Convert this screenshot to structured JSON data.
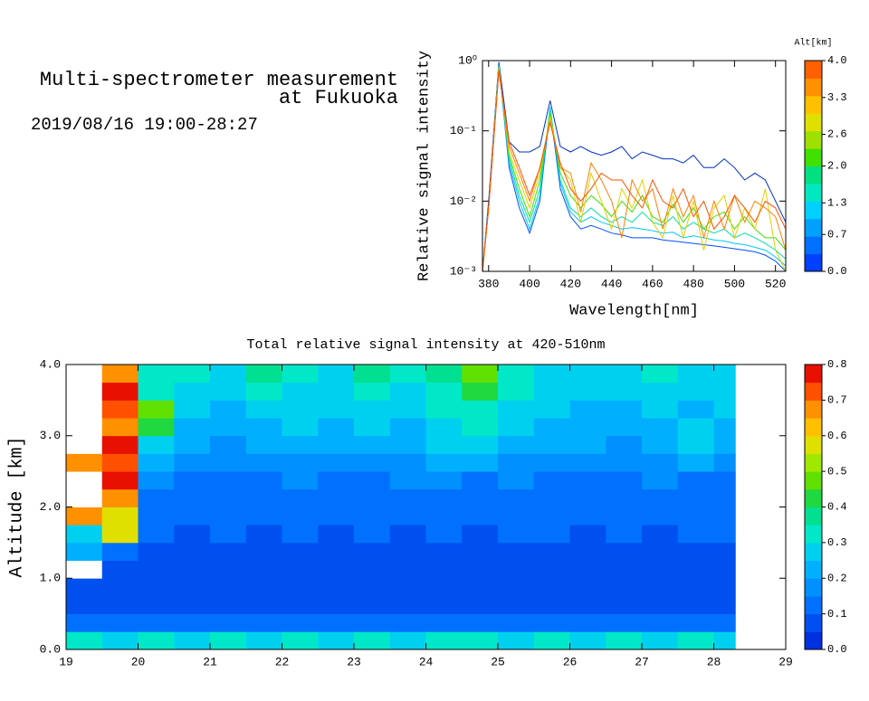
{
  "header": {
    "title_lines": [
      "Multi-spectrometer measurement",
      "at Fukuoka"
    ],
    "date": "2019/08/16 19:00-28:27"
  },
  "chart_data": [
    {
      "type": "line",
      "xlabel": "Wavelength[nm]",
      "ylabel": "Relative signal intensity",
      "log_y": true,
      "xlim": [
        377,
        525
      ],
      "xticks": [
        380,
        400,
        420,
        440,
        460,
        480,
        500,
        520
      ],
      "ylim": [
        0.001,
        1
      ],
      "yticks": [
        {
          "value": 0.001,
          "label": "10⁻³"
        },
        {
          "value": 0.01,
          "label": "10⁻²"
        },
        {
          "value": 0.1,
          "label": "10⁻¹"
        },
        {
          "value": 1,
          "label": "10⁰"
        }
      ],
      "x": [
        377,
        380,
        385,
        390,
        395,
        400,
        405,
        410,
        415,
        420,
        425,
        430,
        435,
        440,
        445,
        450,
        455,
        460,
        465,
        470,
        475,
        480,
        485,
        490,
        495,
        500,
        505,
        510,
        515,
        520,
        525
      ],
      "series": [
        {
          "color": "#0030c0",
          "values": [
            0.001,
            0.01,
            0.95,
            0.07,
            0.05,
            0.05,
            0.06,
            0.27,
            0.06,
            0.05,
            0.06,
            0.05,
            0.045,
            0.05,
            0.06,
            0.04,
            0.05,
            0.045,
            0.04,
            0.04,
            0.035,
            0.045,
            0.03,
            0.03,
            0.04,
            0.03,
            0.02,
            0.025,
            0.02,
            0.01,
            0.005
          ]
        },
        {
          "color": "#0050ff",
          "values": [
            0.001,
            0.008,
            0.9,
            0.03,
            0.008,
            0.0035,
            0.01,
            0.2,
            0.015,
            0.006,
            0.004,
            0.0045,
            0.004,
            0.0035,
            0.0033,
            0.003,
            0.003,
            0.003,
            0.0028,
            0.0027,
            0.0026,
            0.0025,
            0.0024,
            0.0023,
            0.0022,
            0.0021,
            0.002,
            0.0019,
            0.0017,
            0.0014,
            0.001
          ]
        },
        {
          "color": "#00c8ff",
          "values": [
            0.001,
            0.008,
            0.85,
            0.035,
            0.01,
            0.004,
            0.012,
            0.22,
            0.018,
            0.007,
            0.005,
            0.006,
            0.005,
            0.0045,
            0.004,
            0.0042,
            0.004,
            0.0038,
            0.0035,
            0.0036,
            0.003,
            0.0032,
            0.003,
            0.0028,
            0.0027,
            0.0025,
            0.0024,
            0.0022,
            0.002,
            0.0016,
            0.0012
          ]
        },
        {
          "color": "#00e0a0",
          "values": [
            0.001,
            0.008,
            0.85,
            0.04,
            0.012,
            0.005,
            0.015,
            0.2,
            0.02,
            0.008,
            0.006,
            0.008,
            0.006,
            0.005,
            0.006,
            0.005,
            0.007,
            0.005,
            0.0045,
            0.006,
            0.004,
            0.005,
            0.004,
            0.0035,
            0.004,
            0.003,
            0.0035,
            0.003,
            0.0025,
            0.002,
            0.0015
          ]
        },
        {
          "color": "#40e000",
          "values": [
            0.001,
            0.008,
            0.82,
            0.045,
            0.015,
            0.006,
            0.02,
            0.18,
            0.025,
            0.012,
            0.008,
            0.012,
            0.009,
            0.006,
            0.01,
            0.007,
            0.012,
            0.006,
            0.005,
            0.009,
            0.005,
            0.008,
            0.004,
            0.006,
            0.007,
            0.004,
            0.006,
            0.004,
            0.003,
            0.003,
            0.002
          ]
        },
        {
          "color": "#e0d000",
          "values": [
            0.001,
            0.008,
            0.8,
            0.05,
            0.02,
            0.008,
            0.025,
            0.16,
            0.03,
            0.02,
            0.005,
            0.025,
            0.01,
            0.004,
            0.015,
            0.008,
            0.02,
            0.005,
            0.003,
            0.012,
            0.003,
            0.01,
            0.002,
            0.008,
            0.012,
            0.003,
            0.008,
            0.004,
            0.015,
            0.002,
            0.001
          ]
        },
        {
          "color": "#ff8000",
          "values": [
            0.001,
            0.008,
            0.75,
            0.06,
            0.025,
            0.01,
            0.03,
            0.14,
            0.03,
            0.025,
            0.007,
            0.035,
            0.02,
            0.01,
            0.003,
            0.02,
            0.01,
            0.015,
            0.004,
            0.015,
            0.006,
            0.012,
            0.003,
            0.01,
            0.004,
            0.012,
            0.005,
            0.01,
            0.008,
            0.006,
            0.002
          ]
        },
        {
          "color": "#ff5000",
          "values": [
            0.001,
            0.008,
            0.7,
            0.07,
            0.03,
            0.012,
            0.03,
            0.13,
            0.035,
            0.015,
            0.01,
            0.015,
            0.025,
            0.02,
            0.02,
            0.012,
            0.008,
            0.02,
            0.01,
            0.008,
            0.015,
            0.006,
            0.01,
            0.004,
            0.006,
            0.012,
            0.008,
            0.005,
            0.01,
            0.008,
            0.004
          ]
        }
      ],
      "colorbar": {
        "label": "Alt[km]",
        "lim": [
          0,
          4
        ],
        "ticks": [
          {
            "value": 0,
            "label": "0.0"
          },
          {
            "value": 0.7,
            "label": "0.7"
          },
          {
            "value": 1.3,
            "label": "1.3"
          },
          {
            "value": 2,
            "label": "2.0"
          },
          {
            "value": 2.6,
            "label": "2.6"
          },
          {
            "value": 3.3,
            "label": "3.3"
          },
          {
            "value": 4,
            "label": "4.0"
          }
        ],
        "colors": [
          "#0040ff",
          "#0070ff",
          "#00a0ff",
          "#00d0ff",
          "#00e8c0",
          "#00e080",
          "#40e000",
          "#a0e000",
          "#e0e000",
          "#ffc000",
          "#ff9000",
          "#ff6000"
        ]
      }
    },
    {
      "type": "heatmap",
      "title": "Total relative signal intensity at 420-510nm",
      "ylabel": "Altitude [km]",
      "xlim": [
        19,
        29
      ],
      "xticks": [
        19,
        20,
        21,
        22,
        23,
        24,
        25,
        26,
        27,
        28,
        29
      ],
      "ylim": [
        0,
        4
      ],
      "yticks": [
        {
          "value": 0,
          "label": "0.0"
        },
        {
          "value": 1,
          "label": "1.0"
        },
        {
          "value": 2,
          "label": "2.0"
        },
        {
          "value": 3,
          "label": "3.0"
        },
        {
          "value": 4,
          "label": "4.0"
        }
      ],
      "xbins": [
        19,
        19.5,
        20,
        20.5,
        21,
        21.5,
        22,
        22.5,
        23,
        23.5,
        24,
        24.5,
        25,
        25.5,
        26,
        26.5,
        27,
        27.5,
        28,
        28.3
      ],
      "ybins": [
        0,
        0.25,
        0.5,
        0.75,
        1,
        1.25,
        1.5,
        1.75,
        2,
        2.25,
        2.5,
        2.75,
        3,
        3.25,
        3.5,
        3.75,
        4
      ],
      "z": [
        [
          0.35,
          0.3,
          0.32,
          0.3,
          0.33,
          0.3,
          0.31,
          0.3,
          0.32,
          0.3,
          0.33,
          0.31,
          0.3,
          0.32,
          0.3,
          0.31,
          0.3,
          0.32,
          0.3
        ],
        [
          0.12,
          0.1,
          0.1,
          0.11,
          0.1,
          0.1,
          0.12,
          0.1,
          0.11,
          0.1,
          0.1,
          0.12,
          0.1,
          0.1,
          0.11,
          0.1,
          0.1,
          0.11,
          0.1
        ],
        [
          0.06,
          0.05,
          0.05,
          0.06,
          0.05,
          0.05,
          0.06,
          0.05,
          0.05,
          0.06,
          0.05,
          0.05,
          0.06,
          0.05,
          0.05,
          0.05,
          0.06,
          0.05,
          0.05
        ],
        [
          0.07,
          0.06,
          0.06,
          0.06,
          0.05,
          0.06,
          0.06,
          0.05,
          0.06,
          0.06,
          0.05,
          0.06,
          0.06,
          0.05,
          0.06,
          0.06,
          0.05,
          0.06,
          0.06
        ],
        [
          0.9,
          0.08,
          0.07,
          0.07,
          0.06,
          0.07,
          0.07,
          0.06,
          0.07,
          0.07,
          0.06,
          0.07,
          0.07,
          0.06,
          0.07,
          0.07,
          0.07,
          0.07,
          0.07
        ],
        [
          0.2,
          0.15,
          0.08,
          0.08,
          0.07,
          0.08,
          0.07,
          0.08,
          0.08,
          0.07,
          0.08,
          0.08,
          0.07,
          0.08,
          0.08,
          0.07,
          0.08,
          0.09,
          0.08
        ],
        [
          0.3,
          0.55,
          0.1,
          0.09,
          0.1,
          0.09,
          0.1,
          0.09,
          0.1,
          0.09,
          0.1,
          0.09,
          0.1,
          0.11,
          0.09,
          0.1,
          0.09,
          0.1,
          0.1
        ],
        [
          0.65,
          0.6,
          0.12,
          0.11,
          0.12,
          0.11,
          0.12,
          0.13,
          0.11,
          0.12,
          0.12,
          0.13,
          0.11,
          0.12,
          0.11,
          0.12,
          0.12,
          0.11,
          0.12
        ],
        [
          0.9,
          0.7,
          0.14,
          0.13,
          0.13,
          0.14,
          0.13,
          0.14,
          0.13,
          0.14,
          0.15,
          0.13,
          0.14,
          0.14,
          0.13,
          0.14,
          0.13,
          0.14,
          0.13
        ],
        [
          0.9,
          0.75,
          0.16,
          0.15,
          0.14,
          0.15,
          0.16,
          0.15,
          0.15,
          0.16,
          0.16,
          0.15,
          0.16,
          0.15,
          0.14,
          0.15,
          0.16,
          0.15,
          0.15
        ],
        [
          0.7,
          0.72,
          0.2,
          0.17,
          0.16,
          0.18,
          0.17,
          0.18,
          0.16,
          0.18,
          0.2,
          0.22,
          0.18,
          0.17,
          0.16,
          0.17,
          0.18,
          0.2,
          0.17
        ],
        [
          0.9,
          0.75,
          0.25,
          0.2,
          0.19,
          0.2,
          0.22,
          0.2,
          0.21,
          0.2,
          0.26,
          0.3,
          0.24,
          0.2,
          0.2,
          0.19,
          0.2,
          0.25,
          0.2
        ],
        [
          0.85,
          0.7,
          0.4,
          0.22,
          0.2,
          0.24,
          0.26,
          0.22,
          0.25,
          0.24,
          0.3,
          0.35,
          0.28,
          0.22,
          0.22,
          0.21,
          0.22,
          0.25,
          0.22
        ],
        [
          0.9,
          0.72,
          0.45,
          0.25,
          0.22,
          0.28,
          0.3,
          0.25,
          0.3,
          0.28,
          0.32,
          0.33,
          0.3,
          0.25,
          0.24,
          0.23,
          0.25,
          0.24,
          0.25
        ],
        [
          0.9,
          0.8,
          0.35,
          0.3,
          0.25,
          0.32,
          0.28,
          0.26,
          0.35,
          0.3,
          0.35,
          0.4,
          0.32,
          0.28,
          0.27,
          0.25,
          0.3,
          0.28,
          0.27
        ],
        [
          0.9,
          0.7,
          0.32,
          0.35,
          0.3,
          0.38,
          0.32,
          0.3,
          0.38,
          0.32,
          0.36,
          0.45,
          0.35,
          0.3,
          0.3,
          0.28,
          0.32,
          0.3,
          0.28
        ]
      ],
      "colorbar": {
        "lim": [
          0,
          0.8
        ],
        "ticks": [
          {
            "value": 0,
            "label": "0.0"
          },
          0.1,
          0.2,
          0.3,
          0.4,
          0.5,
          0.6,
          0.7,
          0.8
        ],
        "colors": [
          "#0030e0",
          "#0050f0",
          "#0070ff",
          "#0090ff",
          "#00b0ff",
          "#00d0f0",
          "#00e8c8",
          "#00e090",
          "#20d840",
          "#60e000",
          "#a0e800",
          "#e0e000",
          "#ffc000",
          "#ff9000",
          "#ff5000",
          "#e81000"
        ]
      }
    }
  ]
}
